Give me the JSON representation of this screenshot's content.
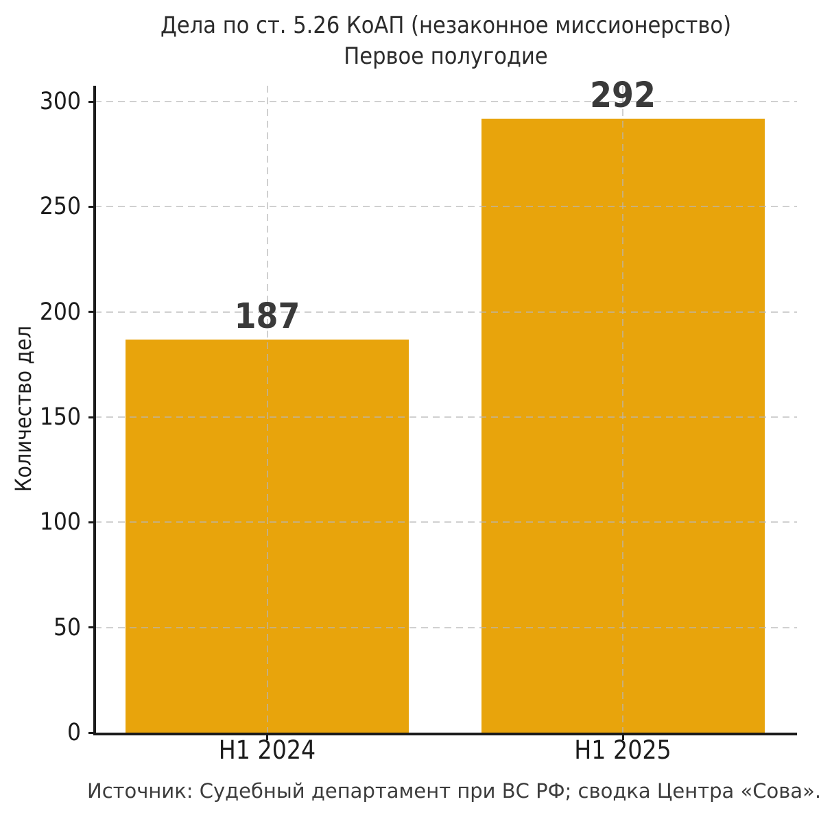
{
  "chart_data": {
    "type": "bar",
    "title": "Дела по ст. 5.26 КоАП (незаконное миссионерство)",
    "subtitle": "Первое полугодие",
    "categories": [
      "H1 2024",
      "H1 2025"
    ],
    "values": [
      187,
      292
    ],
    "value_labels": [
      "187",
      "292"
    ],
    "xlabel": "",
    "ylabel": "Количество дел",
    "yticks": [
      0,
      50,
      100,
      150,
      200,
      250,
      300
    ],
    "ylim": [
      0,
      307.5
    ],
    "grid": "dashed horizontal lines at y-ticks and dashed vertical lines at bar centers, drawn above bars",
    "legend_position": "none",
    "source_note": "Источник: Судебный департамент при ВС РФ; сводка Центра «Сова»."
  },
  "colors": {
    "background": "#ffffff",
    "bar": "#E8A40C",
    "spine": "#1b1b1b",
    "grid": "#d5d5d5",
    "title_text": "#2b2b2b",
    "tick_text": "#1c1c1c",
    "value_text": "#3a3a3a",
    "source_text": "#3c3c3c"
  }
}
